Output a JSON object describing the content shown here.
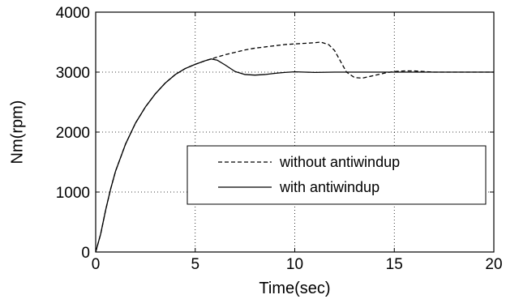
{
  "chart_data": {
    "type": "line",
    "xlabel": "Time(sec)",
    "ylabel": "Nm(rpm)",
    "xlim": [
      0,
      20
    ],
    "ylim": [
      0,
      4000
    ],
    "x_ticks": [
      0,
      5,
      10,
      15,
      20
    ],
    "y_ticks": [
      0,
      1000,
      2000,
      3000,
      4000
    ],
    "grid": "dotted",
    "legend_position": "center-right",
    "series": [
      {
        "name": "without antiwindup",
        "line_style": "dashed",
        "color": "#000000",
        "x": [
          0,
          0.25,
          0.5,
          0.75,
          1,
          1.5,
          2,
          2.5,
          3,
          3.5,
          4,
          4.5,
          5,
          5.5,
          6,
          6.5,
          7,
          7.5,
          8,
          8.5,
          9,
          9.5,
          10,
          10.5,
          11,
          11.3,
          11.7,
          12,
          12.3,
          12.6,
          13,
          13.4,
          13.8,
          14.2,
          14.6,
          15,
          15.5,
          16,
          16.5,
          17,
          18,
          19,
          20
        ],
        "y": [
          0,
          300,
          700,
          1050,
          1350,
          1800,
          2150,
          2420,
          2640,
          2820,
          2960,
          3060,
          3130,
          3190,
          3240,
          3290,
          3330,
          3370,
          3400,
          3420,
          3440,
          3460,
          3470,
          3480,
          3490,
          3500,
          3460,
          3360,
          3180,
          3000,
          2910,
          2900,
          2930,
          2960,
          2990,
          3010,
          3020,
          3020,
          3010,
          3000,
          3000,
          3000,
          3000
        ]
      },
      {
        "name": "with antiwindup",
        "line_style": "solid",
        "color": "#000000",
        "x": [
          0,
          0.25,
          0.5,
          0.75,
          1,
          1.5,
          2,
          2.5,
          3,
          3.5,
          4,
          4.5,
          5,
          5.5,
          5.8,
          6.1,
          6.5,
          7,
          7.5,
          8,
          8.5,
          9,
          9.5,
          10,
          10.5,
          11,
          12,
          13,
          14,
          15,
          16,
          17,
          18,
          19,
          20
        ],
        "y": [
          0,
          300,
          700,
          1050,
          1350,
          1800,
          2150,
          2420,
          2640,
          2820,
          2960,
          3060,
          3130,
          3190,
          3220,
          3200,
          3120,
          3010,
          2960,
          2950,
          2960,
          2980,
          2995,
          3005,
          3000,
          2995,
          3000,
          3000,
          3000,
          3000,
          3000,
          3000,
          3000,
          3000,
          3000
        ]
      }
    ]
  }
}
